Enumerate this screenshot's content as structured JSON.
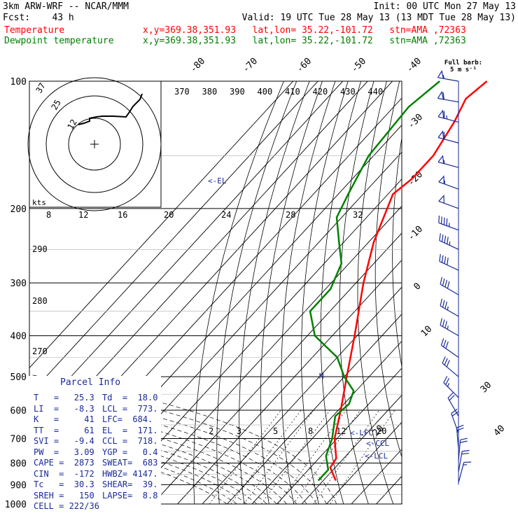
{
  "header": {
    "model": "3km ARW-WRF -- NCAR/MMM",
    "init": "Init: 00 UTC Mon 27 May 13",
    "fcst": "Fcst:    43 h",
    "valid": "Valid: 19 UTC Tue 28 May 13 (13 MDT Tue 28 May 13)",
    "temp_line": {
      "name": "Temperature",
      "loc": "x,y=369.38,351.93   lat,lon= 35.22,-101.72   stn=AMA ,72363"
    },
    "dew_line": {
      "name": "Dewpoint temperature",
      "loc": "x,y=369.38,351.93   lat,lon= 35.22,-101.72   stn=AMA ,72363"
    }
  },
  "colors": {
    "temperature": "#ff0000",
    "dewpoint": "#008000",
    "parcel_info": "#1a2a9a",
    "hodograph": "#000000",
    "barbs": "#1a2a9a"
  },
  "full_barb": {
    "title": "Full barb:",
    "value": "5 m s⁻¹"
  },
  "parcel_info": {
    "title": "Parcel Info",
    "rows": [
      [
        "T   =   25.3",
        "Td  =  18.0"
      ],
      [
        "LI  =   -8.3",
        "LCL =  773."
      ],
      [
        "K   =     41",
        "LFC=  684."
      ],
      [
        "TT  =     61",
        "EL  =  171."
      ],
      [
        "SVI =   -9.4",
        "CCL =  718."
      ],
      [
        "PW  =   3.09",
        "YGP =   0.4"
      ],
      [
        "CAPE =  2873",
        "SWEAT=  683"
      ],
      [
        "CIN  =  -172",
        "HWBZ= 4147."
      ],
      [
        "Tc   =  30.3",
        "SHEAR=  39."
      ],
      [
        "SREH =   150",
        "LAPSE=  8.8"
      ],
      [
        "CELL = 222/36",
        ""
      ]
    ]
  },
  "chart_data": {
    "type": "line",
    "subtype": "skew-T log-P sounding",
    "y_axis": {
      "label": "pressure (hPa)",
      "ticks": [
        100,
        200,
        300,
        400,
        500,
        600,
        700,
        800,
        900,
        1000
      ],
      "scale": "log"
    },
    "isotherm_labels": [
      "-80",
      "-70",
      "-60",
      "-50",
      "-40",
      "-30",
      "-20",
      "-10",
      "0",
      "10",
      "20",
      "30",
      "40"
    ],
    "theta_labels": [
      "370",
      "380",
      "390",
      "400",
      "410",
      "420",
      "430",
      "440"
    ],
    "theta_left_labels": [
      "290",
      "280",
      "270"
    ],
    "mixing_ratio_labels": [
      "2",
      "3",
      "5",
      "8",
      "12",
      "20"
    ],
    "hodo_top_labels": [
      "kts",
      "8",
      "12",
      "16",
      "20",
      "24",
      "28",
      "32"
    ],
    "hodo_ring_labels": [
      "37",
      "25",
      "12"
    ],
    "level_markers": [
      "<-EL",
      "<-LFC",
      "<-CCL",
      "<-LCL",
      "M"
    ],
    "series": [
      {
        "name": "Temperature",
        "points": [
          [
            100,
            -62
          ],
          [
            110,
            -64
          ],
          [
            125,
            -60
          ],
          [
            150,
            -56
          ],
          [
            170,
            -56
          ],
          [
            185,
            -58
          ],
          [
            200,
            -55
          ],
          [
            240,
            -48
          ],
          [
            300,
            -37
          ],
          [
            400,
            -21
          ],
          [
            500,
            -9
          ],
          [
            600,
            1
          ],
          [
            700,
            9
          ],
          [
            780,
            17
          ],
          [
            820,
            18
          ],
          [
            880,
            25
          ]
        ]
      },
      {
        "name": "Dewpoint temperature",
        "points": [
          [
            100,
            -81
          ],
          [
            115,
            -84
          ],
          [
            150,
            -82
          ],
          [
            185,
            -76
          ],
          [
            210,
            -72
          ],
          [
            240,
            -62
          ],
          [
            270,
            -53
          ],
          [
            310,
            -48
          ],
          [
            350,
            -48
          ],
          [
            400,
            -37
          ],
          [
            450,
            -20
          ],
          [
            500,
            -10
          ],
          [
            540,
            -1
          ],
          [
            580,
            2
          ],
          [
            620,
            1
          ],
          [
            700,
            8
          ],
          [
            770,
            12
          ],
          [
            830,
            18
          ],
          [
            880,
            18
          ]
        ]
      }
    ],
    "wind_barbs": [
      {
        "p": 100,
        "kt": 55,
        "dir": 260
      },
      {
        "p": 112,
        "kt": 60,
        "dir": 260
      },
      {
        "p": 125,
        "kt": 65,
        "dir": 255
      },
      {
        "p": 140,
        "kt": 60,
        "dir": 255
      },
      {
        "p": 160,
        "kt": 55,
        "dir": 255
      },
      {
        "p": 180,
        "kt": 55,
        "dir": 250
      },
      {
        "p": 200,
        "kt": 50,
        "dir": 250
      },
      {
        "p": 225,
        "kt": 45,
        "dir": 250
      },
      {
        "p": 250,
        "kt": 45,
        "dir": 245
      },
      {
        "p": 280,
        "kt": 40,
        "dir": 245
      },
      {
        "p": 320,
        "kt": 40,
        "dir": 240
      },
      {
        "p": 360,
        "kt": 35,
        "dir": 240
      },
      {
        "p": 400,
        "kt": 35,
        "dir": 240
      },
      {
        "p": 450,
        "kt": 30,
        "dir": 235
      },
      {
        "p": 500,
        "kt": 30,
        "dir": 230
      },
      {
        "p": 560,
        "kt": 25,
        "dir": 225
      },
      {
        "p": 620,
        "kt": 20,
        "dir": 210
      },
      {
        "p": 680,
        "kt": 20,
        "dir": 200
      },
      {
        "p": 740,
        "kt": 20,
        "dir": 185
      },
      {
        "p": 790,
        "kt": 20,
        "dir": 175
      },
      {
        "p": 840,
        "kt": 20,
        "dir": 170
      },
      {
        "p": 890,
        "kt": 15,
        "dir": 165
      }
    ]
  }
}
